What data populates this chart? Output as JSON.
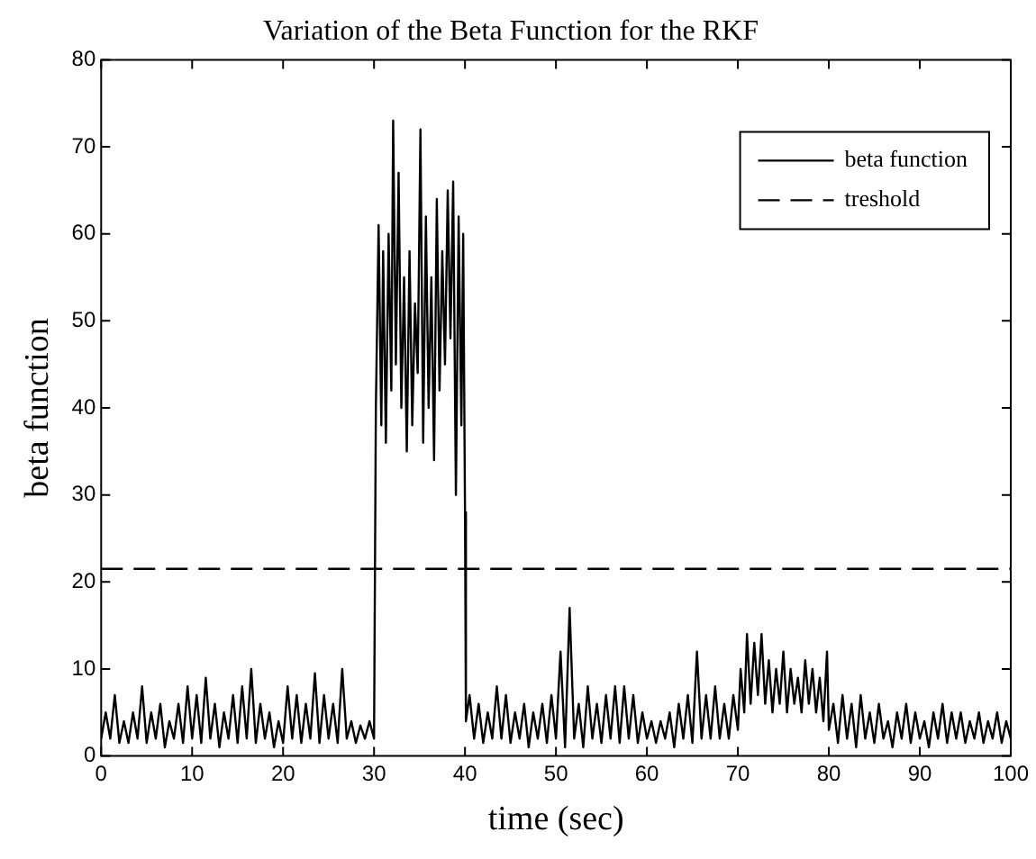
{
  "chart_data": {
    "type": "line",
    "title": "Variation of the Beta Function for the RKF",
    "xlabel": "time (sec)",
    "ylabel": "beta function",
    "xlim": [
      0,
      100
    ],
    "xticks": [
      0,
      10,
      20,
      30,
      40,
      50,
      60,
      70,
      80,
      90,
      100
    ],
    "ylim": [
      0,
      80
    ],
    "yticks": [
      0,
      10,
      20,
      30,
      40,
      50,
      60,
      70,
      80
    ],
    "grid": false,
    "legend": "top right",
    "marker": "none",
    "series": [
      {
        "name": "beta function",
        "color": "#000000",
        "line_style": "solid",
        "x": [
          0,
          0.5,
          1,
          1.5,
          2,
          2.5,
          3,
          3.5,
          4,
          4.5,
          5,
          5.5,
          6,
          6.5,
          7,
          7.5,
          8,
          8.5,
          9,
          9.5,
          10,
          10.5,
          11,
          11.5,
          12,
          12.5,
          13,
          13.5,
          14,
          14.5,
          15,
          15.5,
          16,
          16.5,
          17,
          17.5,
          18,
          18.5,
          19,
          19.5,
          20,
          20.5,
          21,
          21.5,
          22,
          22.5,
          23,
          23.5,
          24,
          24.5,
          25,
          25.5,
          26,
          26.5,
          27,
          27.5,
          28,
          28.5,
          29,
          29.5,
          30,
          30.2,
          30.5,
          30.8,
          31,
          31.3,
          31.6,
          31.9,
          32.1,
          32.4,
          32.7,
          33,
          33.3,
          33.6,
          33.9,
          34.2,
          34.5,
          34.8,
          35.1,
          35.4,
          35.7,
          36,
          36.3,
          36.6,
          36.9,
          37.2,
          37.5,
          37.8,
          38.1,
          38.4,
          38.7,
          39,
          39.3,
          39.6,
          39.8,
          40,
          40.1,
          40.5,
          41,
          41.5,
          42,
          42.5,
          43,
          43.5,
          44,
          44.5,
          45,
          45.5,
          46,
          46.5,
          47,
          47.5,
          48,
          48.5,
          49,
          49.5,
          50,
          50.5,
          51,
          51.5,
          52,
          52.5,
          53,
          53.5,
          54,
          54.5,
          55,
          55.5,
          56,
          56.5,
          57,
          57.5,
          58,
          58.5,
          59,
          59.5,
          60,
          60.5,
          61,
          61.5,
          62,
          62.5,
          63,
          63.5,
          64,
          64.5,
          65,
          65.5,
          66,
          66.5,
          67,
          67.5,
          68,
          68.5,
          69,
          69.5,
          70,
          70.3,
          70.7,
          71,
          71.4,
          71.8,
          72.2,
          72.6,
          73,
          73.4,
          73.8,
          74.2,
          74.6,
          75,
          75.4,
          75.8,
          76.2,
          76.6,
          77,
          77.4,
          77.8,
          78.2,
          78.6,
          79,
          79.4,
          79.8,
          80,
          80.5,
          81,
          81.5,
          82,
          82.5,
          83,
          83.5,
          84,
          84.5,
          85,
          85.5,
          86,
          86.5,
          87,
          87.5,
          88,
          88.5,
          89,
          89.5,
          90,
          90.5,
          91,
          91.5,
          92,
          92.5,
          93,
          93.5,
          94,
          94.5,
          95,
          95.5,
          96,
          96.5,
          97,
          97.5,
          98,
          98.5,
          99,
          99.5,
          100
        ],
        "values": [
          2,
          5,
          2,
          7,
          1.5,
          4,
          1.5,
          5,
          2,
          8,
          1.5,
          5,
          2,
          6,
          1,
          4,
          2,
          6,
          1.5,
          8,
          2,
          7,
          1.5,
          9,
          2,
          6,
          1,
          5,
          2,
          7,
          1.5,
          8,
          2,
          10,
          1.5,
          6,
          2,
          5,
          1,
          4,
          1.5,
          8,
          2,
          7,
          1.5,
          6,
          2,
          9.5,
          1.5,
          7,
          2,
          6,
          1.5,
          10,
          2,
          4,
          1.5,
          3.5,
          2,
          4,
          2,
          40,
          61,
          38,
          58,
          36,
          60,
          42,
          73,
          45,
          67,
          40,
          55,
          35,
          58,
          38,
          52,
          44,
          72,
          36,
          62,
          40,
          55,
          34,
          64,
          42,
          58,
          45,
          65,
          48,
          66,
          30,
          62,
          38,
          60,
          28,
          4,
          7,
          2,
          6,
          1.5,
          5,
          2,
          8,
          2,
          7,
          1.5,
          5,
          2,
          6,
          1,
          5,
          2,
          6,
          1.5,
          7,
          2,
          12,
          1,
          17,
          2,
          6,
          1,
          8,
          2,
          6,
          1.5,
          7,
          2,
          8,
          1.5,
          8,
          2,
          7,
          1.5,
          5,
          2,
          4,
          1.5,
          4,
          2,
          5,
          1,
          6,
          2,
          7,
          1.5,
          12,
          2,
          7,
          2,
          8,
          2,
          6,
          2,
          7,
          3,
          10,
          5,
          14,
          6,
          13,
          7,
          14,
          6,
          11,
          5,
          10,
          6,
          12,
          5,
          10,
          6,
          9,
          5,
          11,
          6,
          10,
          5,
          9,
          4,
          12,
          3,
          6,
          1.5,
          7,
          2,
          6,
          1,
          7,
          2,
          5,
          1.5,
          6,
          2,
          4,
          1,
          5,
          2,
          6,
          1.5,
          5,
          2,
          4,
          1,
          5,
          2,
          6,
          1.5,
          5,
          2,
          5,
          1.5,
          4,
          2,
          5,
          1.5,
          4,
          2,
          5,
          1.5,
          4,
          2
        ]
      },
      {
        "name": "treshold",
        "color": "#000000",
        "line_style": "dashed",
        "x": [
          0,
          100
        ],
        "values": [
          21.5,
          21.5
        ]
      }
    ]
  }
}
